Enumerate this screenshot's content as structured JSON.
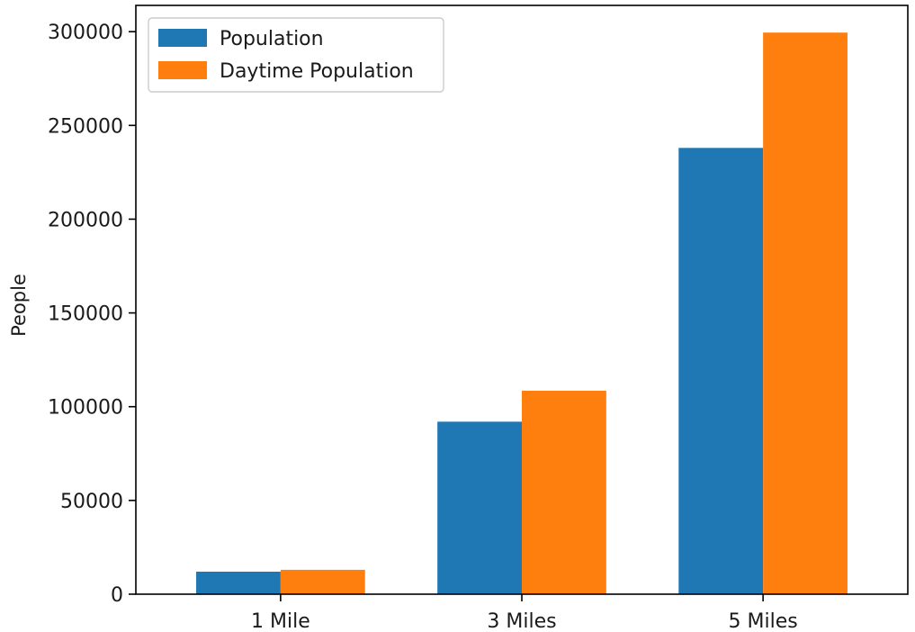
{
  "chart_data": {
    "type": "bar",
    "title": "",
    "xlabel": "",
    "ylabel": "People",
    "categories": [
      "1 Mile",
      "3 Miles",
      "5 Miles"
    ],
    "series": [
      {
        "name": "Population",
        "values": [
          12000,
          92000,
          238000
        ],
        "color": "#1f77b4"
      },
      {
        "name": "Daytime Population",
        "values": [
          13000,
          108500,
          299500
        ],
        "color": "#ff7f0e"
      }
    ],
    "yticks": [
      0,
      50000,
      100000,
      150000,
      200000,
      250000,
      300000
    ],
    "ytick_labels": [
      "0",
      "50000",
      "100000",
      "150000",
      "200000",
      "250000",
      "300000"
    ],
    "ylim": [
      0,
      314000
    ],
    "grid": false,
    "legend_position": "upper-left"
  }
}
